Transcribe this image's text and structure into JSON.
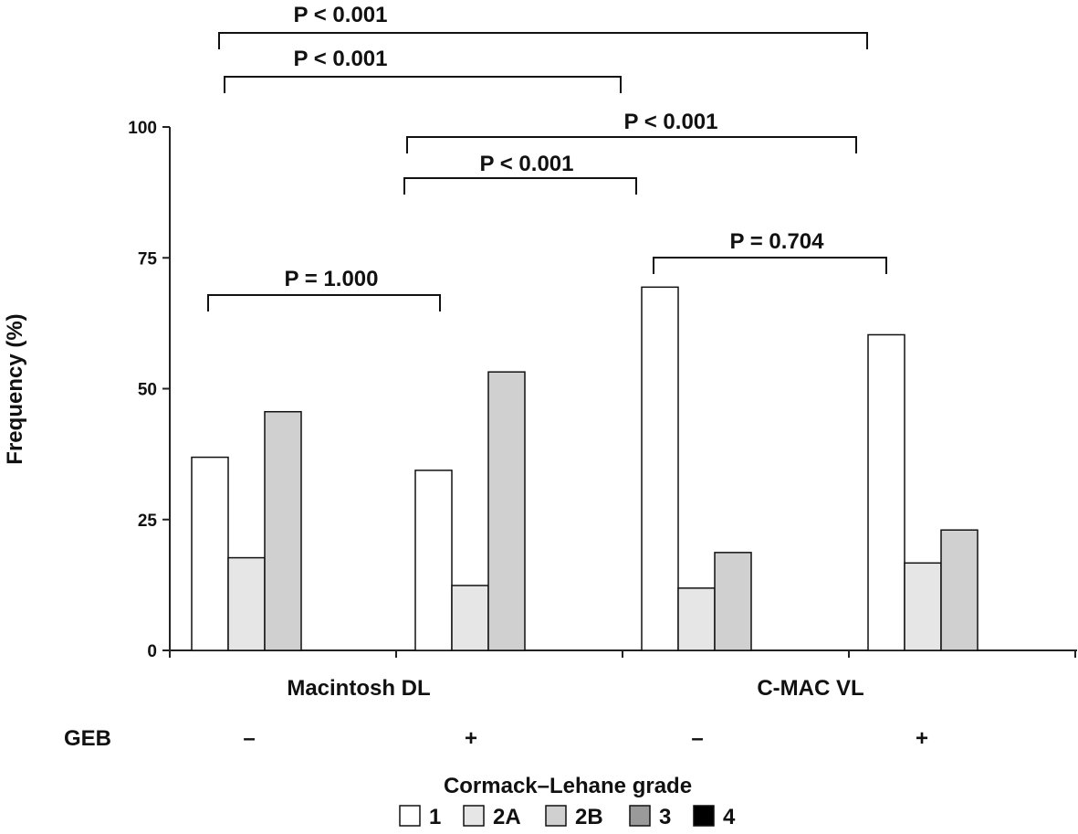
{
  "chart_data": {
    "type": "bar",
    "ylabel": "Frequency (%)",
    "ylim": [
      0,
      100
    ],
    "yticks": [
      "0",
      "25",
      "50",
      "75",
      "100"
    ],
    "groups": [
      {
        "label": "Macintosh DL",
        "subgroups": [
          {
            "geb": "–",
            "values": {
              "1": 36.9,
              "2A": 17.7,
              "2B": 45.6,
              "3": 0,
              "4": 0
            }
          },
          {
            "geb": "+",
            "values": {
              "1": 34.4,
              "2A": 12.4,
              "2B": 53.2,
              "3": 0,
              "4": 0
            }
          }
        ]
      },
      {
        "label": "C-MAC VL",
        "subgroups": [
          {
            "geb": "–",
            "values": {
              "1": 69.4,
              "2A": 11.9,
              "2B": 18.7,
              "3": 0,
              "4": 0
            }
          },
          {
            "geb": "+",
            "values": {
              "1": 60.3,
              "2A": 16.7,
              "2B": 23.0,
              "3": 0,
              "4": 0
            }
          }
        ]
      }
    ],
    "geb_label": "GEB",
    "comparisons": [
      {
        "label": "P < 0.001",
        "from": 0,
        "to": 3
      },
      {
        "label": "P < 0.001",
        "from": 0,
        "to": 2
      },
      {
        "label": "P < 0.001",
        "from": 1,
        "to": 3
      },
      {
        "label": "P < 0.001",
        "from": 1,
        "to": 2
      },
      {
        "label": "P = 0.704",
        "from": 2,
        "to": 3
      },
      {
        "label": "P = 1.000",
        "from": 0,
        "to": 1
      }
    ],
    "legend": {
      "title": "Cormack–Lehane grade",
      "entries": [
        {
          "label": "1",
          "color": "#ffffff"
        },
        {
          "label": "2A",
          "color": "#e6e6e6"
        },
        {
          "label": "2B",
          "color": "#d0d0d0"
        },
        {
          "label": "3",
          "color": "#9a9a9a"
        },
        {
          "label": "4",
          "color": "#000000"
        }
      ]
    }
  }
}
